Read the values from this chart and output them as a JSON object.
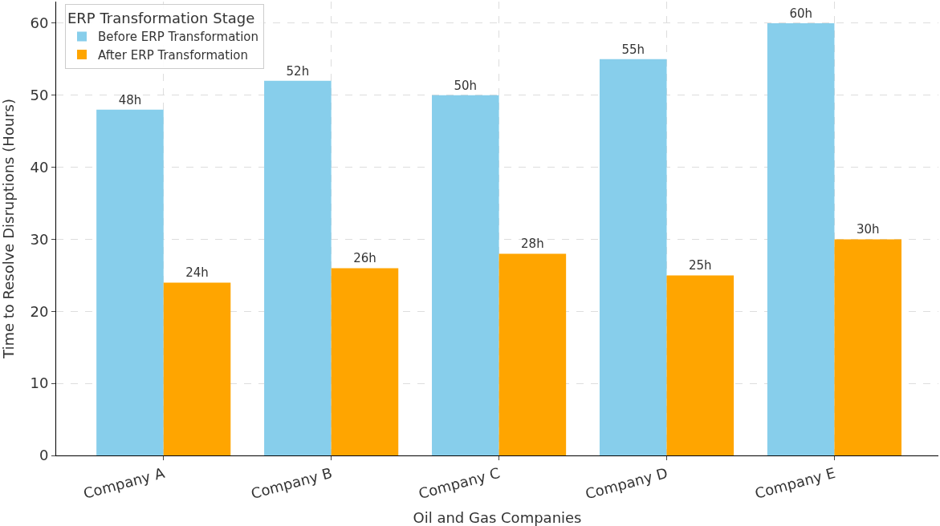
{
  "chart_data": {
    "type": "bar",
    "xlabel": "Oil and Gas Companies",
    "ylabel": "Time to Resolve Disruptions (Hours)",
    "legend_title": "ERP Transformation Stage",
    "categories": [
      "Company A",
      "Company B",
      "Company C",
      "Company D",
      "Company E"
    ],
    "series": [
      {
        "name": "Before ERP Transformation",
        "color": "#87ceeb",
        "values": [
          48,
          52,
          50,
          55,
          60
        ],
        "value_labels": [
          "48h",
          "52h",
          "50h",
          "55h",
          "60h"
        ]
      },
      {
        "name": "After ERP Transformation",
        "color": "#ffa500",
        "values": [
          24,
          26,
          28,
          25,
          30
        ],
        "value_labels": [
          "24h",
          "26h",
          "28h",
          "25h",
          "30h"
        ]
      }
    ],
    "ylim": [
      0,
      63
    ],
    "yticks": [
      0,
      10,
      20,
      30,
      40,
      50,
      60
    ],
    "grid": true,
    "legend": "top left"
  }
}
